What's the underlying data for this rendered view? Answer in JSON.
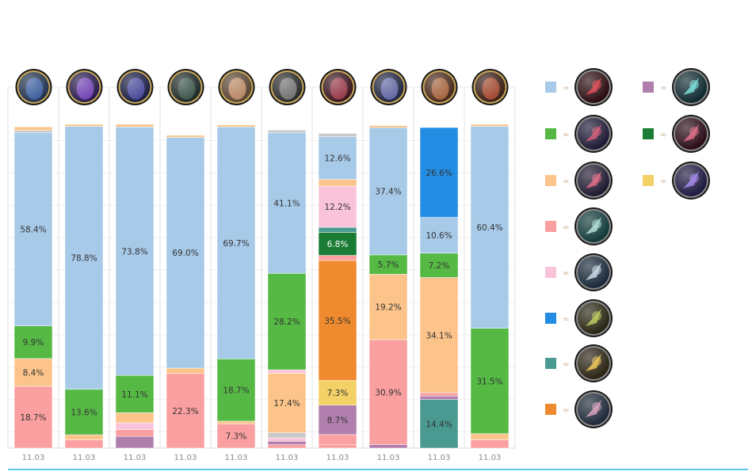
{
  "chart_data": {
    "type": "bar",
    "stacked": true,
    "normalized_to": 100,
    "unit": "%",
    "grid": true,
    "legend": "right",
    "categories": [
      "11.03",
      "11.03",
      "11.03",
      "11.03",
      "11.03",
      "11.03",
      "11.03",
      "11.03",
      "11.03",
      "11.03"
    ],
    "column_icons": [
      {
        "name": "champion-1-icon",
        "bg": "#24344f",
        "fg": "#3d63a8"
      },
      {
        "name": "champion-2-icon",
        "bg": "#2a1d4e",
        "fg": "#7a45c2"
      },
      {
        "name": "champion-3-icon",
        "bg": "#1b1f43",
        "fg": "#4a4ca3"
      },
      {
        "name": "champion-4-icon",
        "bg": "#1f2a28",
        "fg": "#3d5a4d"
      },
      {
        "name": "champion-5-icon",
        "bg": "#5b4533",
        "fg": "#c89068"
      },
      {
        "name": "champion-6-icon",
        "bg": "#2c2c2c",
        "fg": "#7b7b7b"
      },
      {
        "name": "champion-7-icon",
        "bg": "#3a1620",
        "fg": "#a33b4f"
      },
      {
        "name": "champion-8-icon",
        "bg": "#232842",
        "fg": "#6a6fb0"
      },
      {
        "name": "champion-9-icon",
        "bg": "#4a2a1c",
        "fg": "#b26a3e"
      },
      {
        "name": "champion-10-icon",
        "bg": "#3a2018",
        "fg": "#b04a2e"
      }
    ],
    "series_colors": {
      "light_blue": "#a7cae9",
      "green": "#55b944",
      "peach": "#fcc48a",
      "salmon": "#fba0a0",
      "pink": "#f9c3d9",
      "blue": "#238de3",
      "teal": "#4a9a92",
      "orange": "#ef8b2e",
      "purple": "#b17fae",
      "dark_green": "#1b7c35",
      "yellow": "#f3d166",
      "gray": "#c9c9c9"
    },
    "legend_items": [
      {
        "color": "light_blue",
        "name": "rune-1-icon",
        "bg": "#2a0c10",
        "fg": "#d02a34"
      },
      {
        "color": "green",
        "name": "rune-2-icon",
        "bg": "#1e1a36",
        "fg": "#c23a5a"
      },
      {
        "color": "peach",
        "name": "rune-3-icon",
        "bg": "#201a30",
        "fg": "#d04a6a"
      },
      {
        "color": "salmon",
        "name": "rune-4-icon",
        "bg": "#123a3a",
        "fg": "#9ad0c8"
      },
      {
        "color": "pink",
        "name": "rune-5-icon",
        "bg": "#1a2a3a",
        "fg": "#b8c8d8"
      },
      {
        "color": "blue",
        "name": "rune-6-icon",
        "bg": "#2a2614",
        "fg": "#a8b83a"
      },
      {
        "color": "teal",
        "name": "rune-7-icon",
        "bg": "#2a2414",
        "fg": "#e0b030"
      },
      {
        "color": "orange",
        "name": "rune-8-icon",
        "bg": "#202a3a",
        "fg": "#c88aa8"
      },
      {
        "color": "purple",
        "name": "rune-9-icon",
        "bg": "#0f2a30",
        "fg": "#5ad0c8"
      },
      {
        "color": "dark_green",
        "name": "rune-10-icon",
        "bg": "#2a0c18",
        "fg": "#d04a6a"
      },
      {
        "color": "yellow",
        "name": "rune-11-icon",
        "bg": "#1e1a40",
        "fg": "#8a6ae0"
      }
    ],
    "legend_separator": "=",
    "stacks": [
      {
        "top": 99.2,
        "segments": [
          {
            "c": "salmon",
            "v": 18.7,
            "label": "18.7%"
          },
          {
            "c": "peach",
            "v": 8.4,
            "label": "8.4%"
          },
          {
            "c": "green",
            "v": 9.9,
            "label": "9.9%"
          },
          {
            "c": "light_blue",
            "v": 58.4,
            "label": "58.4%"
          },
          {
            "c": "gray",
            "v": 0.8
          },
          {
            "c": "peach",
            "v": 1.0
          }
        ]
      },
      {
        "top": 100,
        "segments": [
          {
            "c": "salmon",
            "v": 2.5
          },
          {
            "c": "peach",
            "v": 1.5
          },
          {
            "c": "green",
            "v": 13.6,
            "label": "13.6%"
          },
          {
            "c": "light_blue",
            "v": 78.8,
            "label": "78.8%"
          },
          {
            "c": "peach",
            "v": 0.6
          }
        ]
      },
      {
        "top": 100,
        "segments": [
          {
            "c": "purple",
            "v": 3.5
          },
          {
            "c": "salmon",
            "v": 2.0
          },
          {
            "c": "pink",
            "v": 2.0
          },
          {
            "c": "peach",
            "v": 3.0
          },
          {
            "c": "green",
            "v": 11.1,
            "label": "11.1%"
          },
          {
            "c": "light_blue",
            "v": 73.8,
            "label": "73.8%"
          },
          {
            "c": "peach",
            "v": 0.8
          }
        ]
      },
      {
        "top": 96.6,
        "segments": [
          {
            "c": "salmon",
            "v": 22.3,
            "label": "22.3%"
          },
          {
            "c": "peach",
            "v": 1.6
          },
          {
            "c": "light_blue",
            "v": 69.0,
            "label": "69.0%"
          },
          {
            "c": "peach",
            "v": 0.6
          }
        ]
      },
      {
        "top": 99.8,
        "segments": [
          {
            "c": "salmon",
            "v": 7.3,
            "label": "7.3%"
          },
          {
            "c": "peach",
            "v": 0.8
          },
          {
            "c": "green",
            "v": 18.7,
            "label": "18.7%"
          },
          {
            "c": "light_blue",
            "v": 69.7,
            "label": "69.7%"
          },
          {
            "c": "peach",
            "v": 0.6
          }
        ]
      },
      {
        "top": 98.2,
        "segments": [
          {
            "c": "salmon",
            "v": 1.0
          },
          {
            "c": "purple",
            "v": 1.0
          },
          {
            "c": "pink",
            "v": 1.0
          },
          {
            "c": "gray",
            "v": 1.5
          },
          {
            "c": "peach",
            "v": 17.4,
            "label": "17.4%"
          },
          {
            "c": "pink",
            "v": 1.0
          },
          {
            "c": "green",
            "v": 28.2,
            "label": "28.2%"
          },
          {
            "c": "light_blue",
            "v": 41.1,
            "label": "41.1%"
          },
          {
            "c": "gray",
            "v": 0.8
          }
        ]
      },
      {
        "top": 97.2,
        "segments": [
          {
            "c": "salmon",
            "v": 1.0
          },
          {
            "c": "salmon",
            "v": 3.0
          },
          {
            "c": "purple",
            "v": 8.7,
            "label": "8.7%"
          },
          {
            "c": "yellow",
            "v": 7.3,
            "label": "7.3%"
          },
          {
            "c": "orange",
            "v": 35.5,
            "label": "35.5%"
          },
          {
            "c": "salmon",
            "v": 1.5
          },
          {
            "c": "dark_green",
            "v": 6.8,
            "label": "6.8%"
          },
          {
            "c": "teal",
            "v": 1.5
          },
          {
            "c": "pink",
            "v": 12.2,
            "label": "12.2%"
          },
          {
            "c": "peach",
            "v": 2.0
          },
          {
            "c": "light_blue",
            "v": 12.6,
            "label": "12.6%"
          },
          {
            "c": "gray",
            "v": 1.0
          }
        ]
      },
      {
        "top": 99.6,
        "segments": [
          {
            "c": "purple",
            "v": 1.0
          },
          {
            "c": "salmon",
            "v": 30.9,
            "label": "30.9%"
          },
          {
            "c": "peach",
            "v": 19.2,
            "label": "19.2%"
          },
          {
            "c": "green",
            "v": 5.7,
            "label": "5.7%"
          },
          {
            "c": "light_blue",
            "v": 37.4,
            "label": "37.4%"
          },
          {
            "c": "peach",
            "v": 0.6
          }
        ]
      },
      {
        "top": 99.0,
        "segments": [
          {
            "c": "teal",
            "v": 14.4,
            "label": "14.4%"
          },
          {
            "c": "purple",
            "v": 1.0
          },
          {
            "c": "salmon",
            "v": 1.0
          },
          {
            "c": "peach",
            "v": 34.1,
            "label": "34.1%"
          },
          {
            "c": "green",
            "v": 7.2,
            "label": "7.2%"
          },
          {
            "c": "light_blue",
            "v": 10.6,
            "label": "10.6%"
          },
          {
            "c": "blue",
            "v": 26.6,
            "label": "26.6%"
          }
        ]
      },
      {
        "top": 100,
        "segments": [
          {
            "c": "salmon",
            "v": 2.5
          },
          {
            "c": "peach",
            "v": 1.8
          },
          {
            "c": "green",
            "v": 31.5,
            "label": "31.5%"
          },
          {
            "c": "light_blue",
            "v": 60.4,
            "label": "60.4%"
          },
          {
            "c": "peach",
            "v": 0.6
          }
        ]
      }
    ]
  }
}
